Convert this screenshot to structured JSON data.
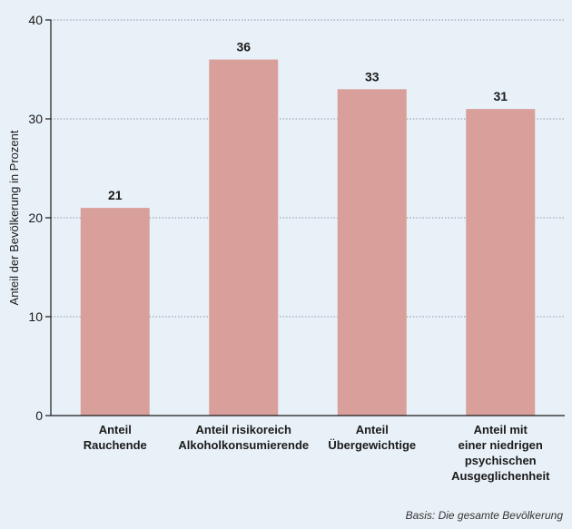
{
  "chart_data": {
    "type": "bar",
    "categories": [
      [
        "Anteil",
        "Rauchende"
      ],
      [
        "Anteil risikoreich",
        "Alkoholkonsumierende"
      ],
      [
        "Anteil",
        "Übergewichtige"
      ],
      [
        "Anteil mit",
        "einer niedrigen",
        "psychischen",
        "Ausgeglichenheit"
      ]
    ],
    "values": [
      21,
      36,
      33,
      31
    ],
    "value_labels": [
      "21",
      "36",
      "33",
      "31"
    ],
    "ylabel": "Anteil der Bevölkerung in Prozent",
    "ylim": [
      0,
      40
    ],
    "yticks": [
      0,
      10,
      20,
      30,
      40
    ],
    "grid": true,
    "bar_color": "#d9a09b",
    "background_color": "#e9f1f8"
  },
  "footnote": "Basis: Die gesamte Bevölkerung"
}
